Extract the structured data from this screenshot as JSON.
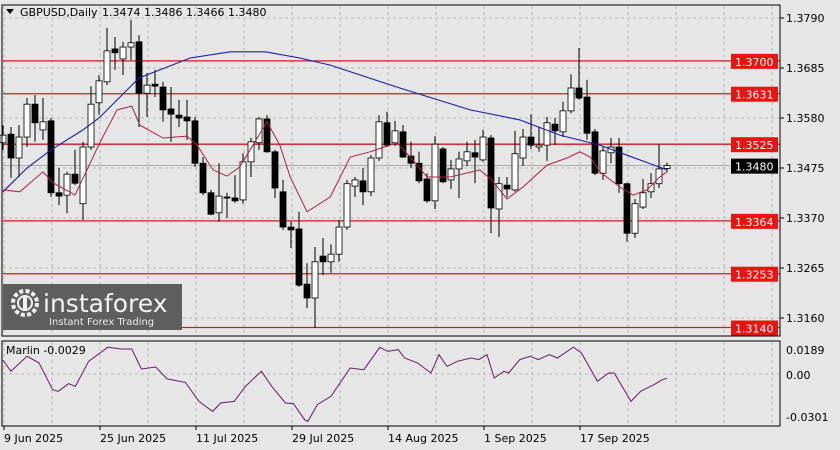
{
  "header": {
    "symbol": "GBPUSD,Daily",
    "ohlc": "1.3474 1.3486 1.3466 1.3480"
  },
  "colors": {
    "background": "#e6e6e6",
    "bull": "#ffffff",
    "bear": "#000000",
    "level_line": "#c81e1e",
    "level_label": "#e8140f",
    "ma_slow": "#1c1ca8",
    "ma_fast": "#b02040",
    "oscillator": "#6a1a6a",
    "current_price_label": "#000000"
  },
  "price_axis": {
    "ticks": [
      "1.3790",
      "1.3685",
      "1.3580",
      "1.3475",
      "1.3370",
      "1.3265",
      "1.3160"
    ]
  },
  "levels": [
    "1.3700",
    "1.3631",
    "1.3525",
    "1.3364",
    "1.3253",
    "1.3140"
  ],
  "current_price": "1.3480",
  "time_axis": {
    "labels": [
      "9 Jun 2025",
      "25 Jun 2025",
      "11 Jul 2025",
      "29 Jul 2025",
      "14 Aug 2025",
      "1 Sep 2025",
      "17 Sep 2025"
    ]
  },
  "indicator": {
    "label": "Marlin -0.0029",
    "ticks": [
      "0.0189",
      "0.00",
      "-0.0301"
    ]
  },
  "watermark": {
    "brand": "instaforex",
    "tagline": "Instant Forex Trading"
  },
  "chart_data": {
    "type": "candlestick",
    "candles": [
      [
        1.3528,
        1.3565,
        1.3513,
        1.3544
      ],
      [
        1.3546,
        1.3561,
        1.3454,
        1.3496
      ],
      [
        1.3496,
        1.3565,
        1.3456,
        1.354
      ],
      [
        1.354,
        1.3622,
        1.3519,
        1.3609
      ],
      [
        1.3609,
        1.3628,
        1.353,
        1.357
      ],
      [
        1.3555,
        1.3622,
        1.3534,
        1.3572
      ],
      [
        1.3574,
        1.358,
        1.3414,
        1.3423
      ],
      [
        1.3423,
        1.3475,
        1.3397,
        1.3416
      ],
      [
        1.3418,
        1.3467,
        1.338,
        1.3462
      ],
      [
        1.3462,
        1.3513,
        1.3439,
        1.3443
      ],
      [
        1.34,
        1.353,
        1.3366,
        1.3519
      ],
      [
        1.3519,
        1.3647,
        1.3513,
        1.3609
      ],
      [
        1.3612,
        1.367,
        1.3587,
        1.3658
      ],
      [
        1.3656,
        1.3769,
        1.3649,
        1.3721
      ],
      [
        1.3725,
        1.375,
        1.3681,
        1.3717
      ],
      [
        1.3704,
        1.374,
        1.367,
        1.3729
      ],
      [
        1.3729,
        1.3786,
        1.3702,
        1.3738
      ],
      [
        1.374,
        1.3754,
        1.3561,
        1.3632
      ],
      [
        1.3632,
        1.3674,
        1.3582,
        1.3649
      ],
      [
        1.3651,
        1.3681,
        1.3624,
        1.3647
      ],
      [
        1.3645,
        1.3656,
        1.3572,
        1.3597
      ],
      [
        1.3599,
        1.3645,
        1.353,
        1.3588
      ],
      [
        1.3586,
        1.3618,
        1.3561,
        1.358
      ],
      [
        1.3582,
        1.3618,
        1.3534,
        1.3574
      ],
      [
        1.3574,
        1.3582,
        1.3477,
        1.3485
      ],
      [
        1.3485,
        1.3498,
        1.3418,
        1.3423
      ],
      [
        1.3423,
        1.3429,
        1.3376,
        1.3378
      ],
      [
        1.3381,
        1.3485,
        1.3362,
        1.3416
      ],
      [
        1.3414,
        1.3423,
        1.337,
        1.3412
      ],
      [
        1.3412,
        1.346,
        1.3402,
        1.3406
      ],
      [
        1.3408,
        1.3506,
        1.34,
        1.3488
      ],
      [
        1.3488,
        1.3538,
        1.3456,
        1.353
      ],
      [
        1.3528,
        1.3582,
        1.3513,
        1.3578
      ],
      [
        1.3578,
        1.3586,
        1.3507,
        1.3509
      ],
      [
        1.3509,
        1.3513,
        1.3412,
        1.3433
      ],
      [
        1.3425,
        1.345,
        1.3345,
        1.3351
      ],
      [
        1.3351,
        1.3362,
        1.3307,
        1.3345
      ],
      [
        1.3347,
        1.3383,
        1.3225,
        1.3229
      ],
      [
        1.3231,
        1.3275,
        1.3181,
        1.3202
      ],
      [
        1.3202,
        1.3309,
        1.3139,
        1.3278
      ],
      [
        1.329,
        1.3328,
        1.325,
        1.3278
      ],
      [
        1.3278,
        1.3315,
        1.3255,
        1.3294
      ],
      [
        1.3294,
        1.3366,
        1.3278,
        1.3351
      ],
      [
        1.3351,
        1.345,
        1.3345,
        1.3442
      ],
      [
        1.3437,
        1.3456,
        1.3414,
        1.345
      ],
      [
        1.3448,
        1.3475,
        1.3397,
        1.3425
      ],
      [
        1.3425,
        1.3502,
        1.3416,
        1.3496
      ],
      [
        1.3496,
        1.3586,
        1.349,
        1.3572
      ],
      [
        1.357,
        1.3593,
        1.3519,
        1.3523
      ],
      [
        1.3528,
        1.3574,
        1.3521,
        1.3553
      ],
      [
        1.3551,
        1.3565,
        1.3496,
        1.3498
      ],
      [
        1.35,
        1.353,
        1.3475,
        1.3485
      ],
      [
        1.3485,
        1.3509,
        1.3443,
        1.3448
      ],
      [
        1.3452,
        1.3464,
        1.3402,
        1.3406
      ],
      [
        1.3406,
        1.3542,
        1.3389,
        1.3525
      ],
      [
        1.3515,
        1.3519,
        1.3443,
        1.3446
      ],
      [
        1.345,
        1.3492,
        1.3431,
        1.3473
      ],
      [
        1.3473,
        1.3509,
        1.3412,
        1.3494
      ],
      [
        1.349,
        1.353,
        1.3479,
        1.3509
      ],
      [
        1.3507,
        1.3534,
        1.3443,
        1.3498
      ],
      [
        1.3492,
        1.3555,
        1.3488,
        1.354
      ],
      [
        1.3538,
        1.3544,
        1.3338,
        1.3391
      ],
      [
        1.3389,
        1.3456,
        1.333,
        1.3442
      ],
      [
        1.3439,
        1.3456,
        1.3414,
        1.3431
      ],
      [
        1.3429,
        1.3553,
        1.3425,
        1.3505
      ],
      [
        1.3496,
        1.3557,
        1.3479,
        1.354
      ],
      [
        1.354,
        1.3588,
        1.3515,
        1.3523
      ],
      [
        1.3519,
        1.3561,
        1.3509,
        1.3523
      ],
      [
        1.3523,
        1.3582,
        1.349,
        1.357
      ],
      [
        1.3567,
        1.358,
        1.3523,
        1.3553
      ],
      [
        1.3551,
        1.3614,
        1.354,
        1.3595
      ],
      [
        1.3595,
        1.3672,
        1.359,
        1.3643
      ],
      [
        1.3643,
        1.3727,
        1.3618,
        1.3622
      ],
      [
        1.3624,
        1.366,
        1.3534,
        1.3548
      ],
      [
        1.3551,
        1.3557,
        1.346,
        1.3464
      ],
      [
        1.3464,
        1.3519,
        1.345,
        1.3511
      ],
      [
        1.3507,
        1.3538,
        1.3485,
        1.3519
      ],
      [
        1.3519,
        1.3538,
        1.3423,
        1.3442
      ],
      [
        1.3442,
        1.3444,
        1.332,
        1.3338
      ],
      [
        1.3338,
        1.341,
        1.3328,
        1.34
      ],
      [
        1.3393,
        1.3452,
        1.3389,
        1.3423
      ],
      [
        1.3425,
        1.3464,
        1.3412,
        1.3442
      ],
      [
        1.3442,
        1.3525,
        1.3433,
        1.3473
      ],
      [
        1.3474,
        1.3486,
        1.3466,
        1.348
      ]
    ],
    "ma_slow": [
      [
        0,
        1.3425
      ],
      [
        3,
        1.3475
      ],
      [
        6,
        1.3513
      ],
      [
        10,
        1.3555
      ],
      [
        12,
        1.358
      ],
      [
        17,
        1.3664
      ],
      [
        23.4,
        1.3706
      ],
      [
        28.4,
        1.3719
      ],
      [
        32.8,
        1.3719
      ],
      [
        37.1,
        1.3706
      ],
      [
        40.9,
        1.3691
      ],
      [
        49.6,
        1.3643
      ],
      [
        58.4,
        1.3597
      ],
      [
        64.6,
        1.3576
      ],
      [
        69.6,
        1.3544
      ],
      [
        74.6,
        1.3523
      ],
      [
        79.6,
        1.3492
      ],
      [
        83,
        1.3471
      ]
    ],
    "ma_fast": [
      [
        0,
        1.3429
      ],
      [
        2.1,
        1.3425
      ],
      [
        5,
        1.3467
      ],
      [
        6.25,
        1.3444
      ],
      [
        9,
        1.3418
      ],
      [
        12.1,
        1.3528
      ],
      [
        14.25,
        1.3597
      ],
      [
        16.1,
        1.3605
      ],
      [
        17.1,
        1.3565
      ],
      [
        20,
        1.3538
      ],
      [
        23,
        1.3542
      ],
      [
        24.25,
        1.3523
      ],
      [
        26.25,
        1.3471
      ],
      [
        28,
        1.3458
      ],
      [
        29.6,
        1.3477
      ],
      [
        33,
        1.3572
      ],
      [
        34.6,
        1.3523
      ],
      [
        35.9,
        1.3456
      ],
      [
        38,
        1.3383
      ],
      [
        40.9,
        1.3414
      ],
      [
        43.4,
        1.3498
      ],
      [
        45.9,
        1.3509
      ],
      [
        49.25,
        1.3528
      ],
      [
        50.9,
        1.3498
      ],
      [
        53,
        1.3456
      ],
      [
        55.9,
        1.3456
      ],
      [
        59.6,
        1.3471
      ],
      [
        61.1,
        1.345
      ],
      [
        63,
        1.341
      ],
      [
        65,
        1.3435
      ],
      [
        68,
        1.3481
      ],
      [
        70.5,
        1.3496
      ],
      [
        72.1,
        1.3509
      ],
      [
        73.4,
        1.3498
      ],
      [
        74.6,
        1.3467
      ],
      [
        77.1,
        1.3435
      ],
      [
        78.75,
        1.3418
      ],
      [
        80.5,
        1.3429
      ],
      [
        82.1,
        1.3456
      ],
      [
        83,
        1.3467
      ]
    ],
    "marlin": [
      [
        0,
        0.0108
      ],
      [
        1,
        0.0021
      ],
      [
        3,
        0.0139
      ],
      [
        4.5,
        0.0087
      ],
      [
        6.2,
        -0.0105
      ],
      [
        6.9,
        -0.0116
      ],
      [
        8.2,
        -0.0065
      ],
      [
        9.05,
        -0.0083
      ],
      [
        10.7,
        0.01
      ],
      [
        13.1,
        0.021
      ],
      [
        14.8,
        0.0197
      ],
      [
        16.1,
        0.0197
      ],
      [
        17.3,
        0.0039
      ],
      [
        19.1,
        0.0055
      ],
      [
        20.5,
        -0.0033
      ],
      [
        22.8,
        -0.0056
      ],
      [
        24.5,
        -0.0183
      ],
      [
        26.2,
        -0.025
      ],
      [
        27.2,
        -0.0194
      ],
      [
        28.9,
        -0.0183
      ],
      [
        30.3,
        -0.0083
      ],
      [
        32.3,
        0.0021
      ],
      [
        33.6,
        -0.0083
      ],
      [
        35.3,
        -0.0194
      ],
      [
        36.3,
        -0.0198
      ],
      [
        37.7,
        -0.0306
      ],
      [
        38.1,
        -0.0317
      ],
      [
        39.3,
        -0.0205
      ],
      [
        41,
        -0.0149
      ],
      [
        43.4,
        0.0047
      ],
      [
        45.1,
        0.0034
      ],
      [
        47.1,
        0.021
      ],
      [
        48.1,
        0.0178
      ],
      [
        49.4,
        0.0192
      ],
      [
        50.2,
        0.0126
      ],
      [
        51.8,
        0.0087
      ],
      [
        53.5,
        0.0008
      ],
      [
        54.5,
        0.0152
      ],
      [
        55.5,
        0.006
      ],
      [
        56.8,
        0.01
      ],
      [
        58.5,
        0.0126
      ],
      [
        59.5,
        0.0113
      ],
      [
        60.5,
        0.0152
      ],
      [
        61.4,
        -0.0027
      ],
      [
        62.6,
        0.0021
      ],
      [
        63.2,
        0.0008
      ],
      [
        64.6,
        0.0113
      ],
      [
        65.9,
        0.0139
      ],
      [
        66.9,
        0.0113
      ],
      [
        68.3,
        0.0152
      ],
      [
        69.3,
        0.0126
      ],
      [
        71.3,
        0.0212
      ],
      [
        72.3,
        0.0165
      ],
      [
        74.3,
        -0.0049
      ],
      [
        75.7,
        0.0008
      ],
      [
        76.4,
        0.0008
      ],
      [
        78.5,
        -0.0183
      ],
      [
        79.7,
        -0.0116
      ],
      [
        81.4,
        -0.0071
      ],
      [
        82.4,
        -0.0038
      ],
      [
        83,
        -0.0029
      ]
    ]
  }
}
